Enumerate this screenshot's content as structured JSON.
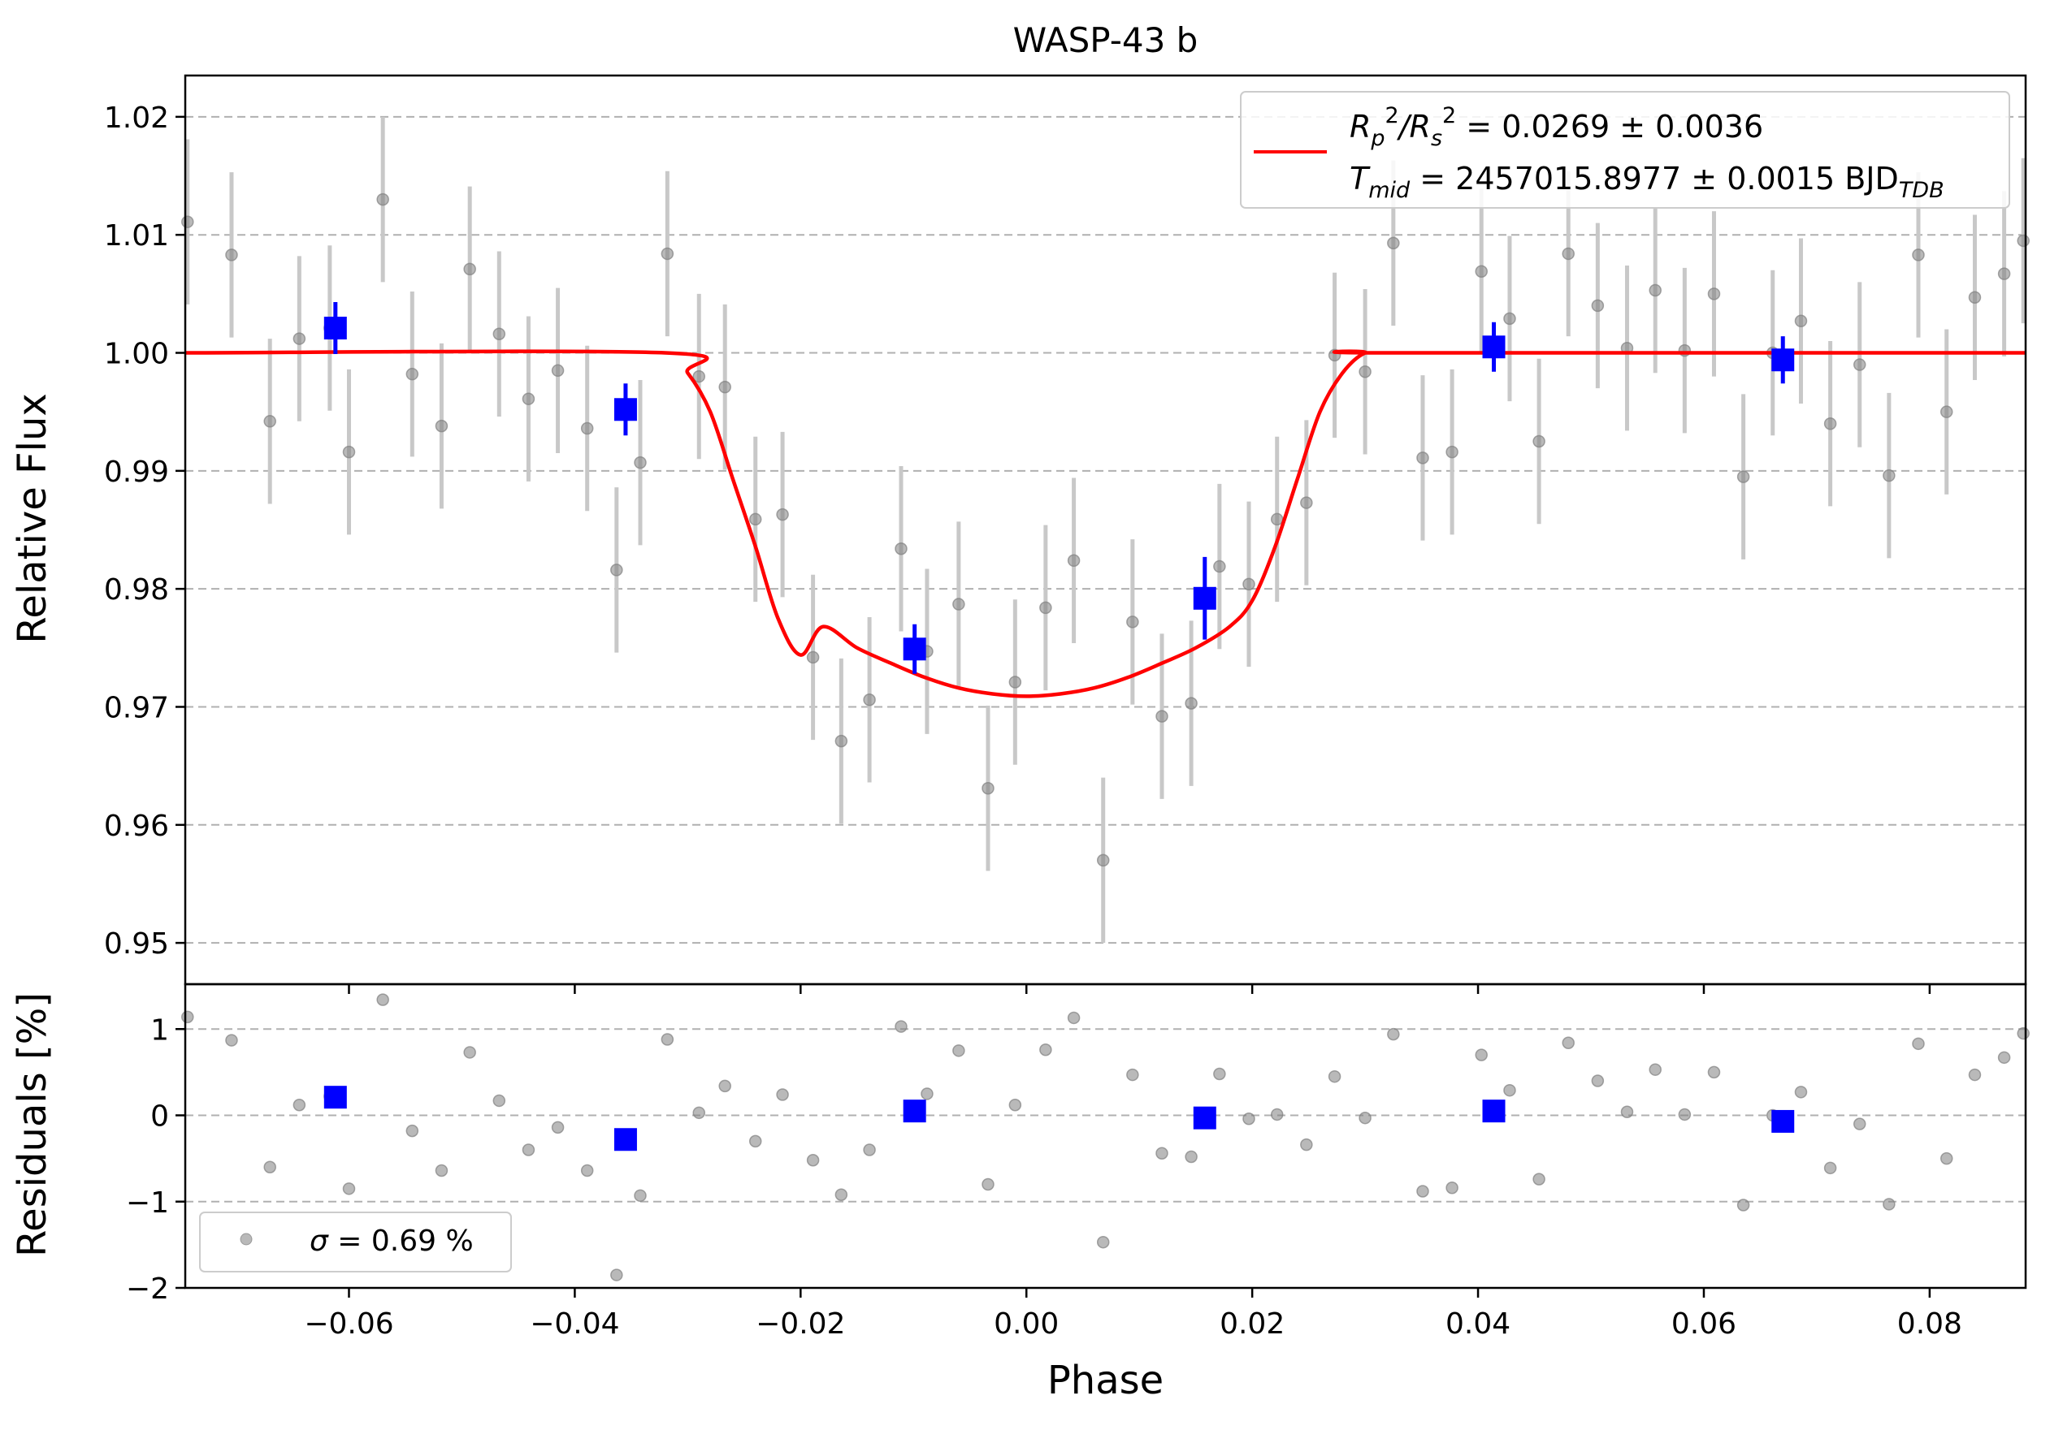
{
  "chart_data": [
    {
      "type": "scatter",
      "panel": "main",
      "title": "WASP-43 b",
      "xlabel": "",
      "ylabel": "Relative Flux",
      "xlim": [
        -0.0745,
        0.0885
      ],
      "ylim": [
        0.9465,
        1.0235
      ],
      "x_ticks": [
        -0.06,
        -0.04,
        -0.02,
        0.0,
        0.02,
        0.04,
        0.06,
        0.08
      ],
      "x_tick_labels": [
        "",
        "",
        "",
        "",
        "",
        "",
        "",
        ""
      ],
      "y_ticks": [
        0.95,
        0.96,
        0.97,
        0.98,
        0.99,
        1.0,
        1.01,
        1.02
      ],
      "y_tick_labels": [
        "0.95",
        "0.96",
        "0.97",
        "0.98",
        "0.99",
        "1.00",
        "1.01",
        "1.02"
      ],
      "grid": "horizontal dashed",
      "legend_position": "top-right",
      "legend_texts": {
        "depth": {
          "a": "R",
          "b": "p",
          "c": "2",
          "d": "/R",
          "e": "s",
          "f": "2",
          "g": " = 0.0269 ± 0.0036"
        },
        "tmid": {
          "a": "T",
          "b": "mid",
          "c": " = 2457015.8977 ± 0.0015 BJD",
          "d": "TDB"
        }
      },
      "series": [
        {
          "name": "data",
          "style": "gray-points-with-errorbars",
          "color": "#808080",
          "error": 0.007,
          "x": [
            -0.0743,
            -0.0704,
            -0.067,
            -0.0644,
            -0.0617,
            -0.06,
            -0.057,
            -0.0544,
            -0.0518,
            -0.0493,
            -0.0467,
            -0.0441,
            -0.0415,
            -0.0389,
            -0.0363,
            -0.0342,
            -0.0318,
            -0.029,
            -0.0267,
            -0.024,
            -0.0216,
            -0.0189,
            -0.0164,
            -0.0139,
            -0.0111,
            -0.0088,
            -0.006,
            -0.0034,
            -0.001,
            0.0017,
            0.0042,
            0.0068,
            0.0094,
            0.012,
            0.0146,
            0.0171,
            0.0197,
            0.0222,
            0.0248,
            0.0273,
            0.03,
            0.0325,
            0.0351,
            0.0377,
            0.0403,
            0.0428,
            0.0454,
            0.048,
            0.0506,
            0.0532,
            0.0557,
            0.0583,
            0.0609,
            0.0635,
            0.0661,
            0.0686,
            0.0712,
            0.0738,
            0.0764,
            0.079,
            0.0815,
            0.084,
            0.0866,
            0.0883
          ],
          "y": [
            1.0111,
            1.0083,
            0.9942,
            1.0012,
            1.0021,
            0.9916,
            1.013,
            0.9982,
            0.9938,
            1.0071,
            1.0016,
            0.9961,
            0.9985,
            0.9936,
            0.9816,
            0.9907,
            1.0084,
            0.998,
            0.9971,
            0.9859,
            0.9863,
            0.9742,
            0.9671,
            0.9706,
            0.9834,
            0.9747,
            0.9787,
            0.9631,
            0.9721,
            0.9784,
            0.9824,
            0.957,
            0.9772,
            0.9692,
            0.9703,
            0.9819,
            0.9804,
            0.9859,
            0.9873,
            0.9998,
            0.9984,
            1.0093,
            0.9911,
            0.9916,
            1.0069,
            1.0029,
            0.9925,
            1.0084,
            1.004,
            1.0004,
            1.0053,
            1.0002,
            1.005,
            0.9895,
            1.0,
            1.0027,
            0.994,
            0.999,
            0.9896,
            1.0083,
            0.995,
            1.0047,
            1.0067,
            1.0095
          ]
        },
        {
          "name": "binned",
          "style": "blue-squares-with-errorbars",
          "color": "#0000ff",
          "x": [
            -0.0612,
            -0.0355,
            -0.0099,
            0.0158,
            0.0414,
            0.067
          ],
          "y": [
            1.0021,
            0.9952,
            0.9749,
            0.9792,
            1.0005,
            0.9994
          ],
          "errors": [
            0.0022,
            0.0022,
            0.0021,
            0.0035,
            0.0021,
            0.002
          ]
        },
        {
          "name": "model",
          "style": "line",
          "color": "#ff0000",
          "x": [
            -0.0745,
            -0.032,
            -0.03,
            -0.028,
            -0.026,
            -0.024,
            -0.022,
            -0.02,
            -0.018,
            -0.015,
            -0.012,
            -0.009,
            -0.006,
            -0.003,
            0.0,
            0.003,
            0.006,
            0.009,
            0.012,
            0.015,
            0.018,
            0.02,
            0.022,
            0.024,
            0.026,
            0.028,
            0.03,
            0.032,
            0.0885
          ],
          "y": [
            1.0,
            1.0,
            0.9983,
            0.995,
            0.9893,
            0.9836,
            0.9775,
            0.9744,
            0.9768,
            0.975,
            0.9737,
            0.9725,
            0.9716,
            0.9711,
            0.9709,
            0.9711,
            0.9716,
            0.9725,
            0.9737,
            0.975,
            0.9768,
            0.979,
            0.9835,
            0.9893,
            0.995,
            0.9983,
            1.0,
            1.0,
            1.0
          ]
        }
      ]
    },
    {
      "type": "scatter",
      "panel": "residuals",
      "xlabel": "Phase",
      "ylabel": "Residuals [%]",
      "xlim": [
        -0.0745,
        0.0885
      ],
      "ylim": [
        -2.0,
        1.52
      ],
      "x_ticks": [
        -0.06,
        -0.04,
        -0.02,
        0.0,
        0.02,
        0.04,
        0.06,
        0.08
      ],
      "x_tick_labels": [
        "−0.06",
        "−0.04",
        "−0.02",
        "0.00",
        "0.02",
        "0.04",
        "0.06",
        "0.08"
      ],
      "y_ticks": [
        -2,
        -1,
        0,
        1
      ],
      "y_tick_labels": [
        "−2",
        "−1",
        "0",
        "1"
      ],
      "grid": "horizontal dashed",
      "legend_position": "lower-left",
      "legend_texts": {
        "sigma": {
          "a": "σ",
          "b": " = 0.69 %"
        }
      },
      "series": [
        {
          "name": "residuals",
          "style": "gray-points",
          "color": "#808080",
          "x": [
            -0.0743,
            -0.0704,
            -0.067,
            -0.0644,
            -0.0617,
            -0.06,
            -0.057,
            -0.0544,
            -0.0518,
            -0.0493,
            -0.0467,
            -0.0441,
            -0.0415,
            -0.0389,
            -0.0363,
            -0.0342,
            -0.0318,
            -0.029,
            -0.0267,
            -0.024,
            -0.0216,
            -0.0189,
            -0.0164,
            -0.0139,
            -0.0111,
            -0.0088,
            -0.006,
            -0.0034,
            -0.001,
            0.0017,
            0.0042,
            0.0068,
            0.0094,
            0.012,
            0.0146,
            0.0171,
            0.0197,
            0.0222,
            0.0248,
            0.0273,
            0.03,
            0.0325,
            0.0351,
            0.0377,
            0.0403,
            0.0428,
            0.0454,
            0.048,
            0.0506,
            0.0532,
            0.0557,
            0.0583,
            0.0609,
            0.0635,
            0.0661,
            0.0686,
            0.0712,
            0.0738,
            0.0764,
            0.079,
            0.0815,
            0.084,
            0.0866,
            0.0883
          ],
          "y": [
            1.14,
            0.87,
            -0.6,
            0.12,
            0.22,
            -0.85,
            1.34,
            -0.18,
            -0.64,
            0.73,
            0.17,
            -0.4,
            -0.14,
            -0.64,
            -1.85,
            -0.93,
            0.88,
            0.03,
            0.34,
            -0.3,
            0.24,
            -0.52,
            -0.92,
            -0.4,
            1.03,
            0.25,
            0.75,
            -0.8,
            0.12,
            0.76,
            1.13,
            -1.47,
            0.47,
            -0.44,
            -0.48,
            0.48,
            -0.04,
            0.01,
            -0.34,
            0.45,
            -0.03,
            0.94,
            -0.88,
            -0.84,
            0.7,
            0.29,
            -0.74,
            0.84,
            0.4,
            0.04,
            0.53,
            0.01,
            0.5,
            -1.04,
            0.0,
            0.27,
            -0.61,
            -0.1,
            -1.03,
            0.83,
            -0.5,
            0.47,
            0.67,
            0.95
          ]
        },
        {
          "name": "binned-residuals",
          "style": "blue-squares",
          "color": "#0000ff",
          "x": [
            -0.0612,
            -0.0355,
            -0.0099,
            0.0158,
            0.0414,
            0.067
          ],
          "y": [
            0.21,
            -0.28,
            0.05,
            -0.03,
            0.05,
            -0.07
          ]
        }
      ]
    }
  ]
}
